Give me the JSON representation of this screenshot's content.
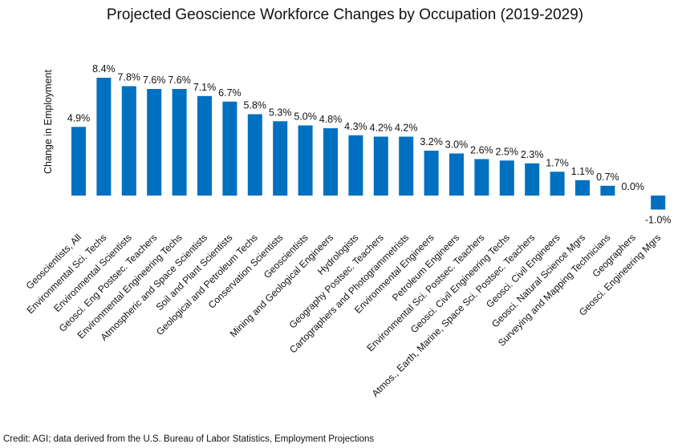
{
  "chart_data": {
    "type": "bar",
    "title": "Projected Geoscience Workforce Changes by Occupation (2019-2029)",
    "ylabel": "Change in Employment",
    "xlabel": "",
    "categories": [
      "Geoscientists, All",
      "Environmental Sci. Techs",
      "Environmental Scientists",
      "Geosci. Eng Postsec. Teachers",
      "Environmental Engineering Techs",
      "Atmospheric and Space Scientists",
      "Soil and Plant Scientists",
      "Geological and Petroleum Techs",
      "Conservation Scientists",
      "Geoscientists",
      "Mining and Geological Engineers",
      "Hydrologists",
      "Geography Postsec. Teachers",
      "Cartographers and Photogrammetrists",
      "Environmental Engineers",
      "Petroleum Engineers",
      "Environmental Sci. Postsec. Teachers",
      "Geosci. Civil Engineering Techs",
      "Atmos., Earth, Marine, Space Sci. Postsec. Teachers",
      "Geosci. Civil Engineers",
      "Geosci. Natural Science Mgrs",
      "Surveying and Mapping Technicians",
      "Geographers",
      "Geosci. Engineering Mgrs"
    ],
    "values": [
      4.9,
      8.4,
      7.8,
      7.6,
      7.6,
      7.1,
      6.7,
      5.8,
      5.3,
      5.0,
      4.8,
      4.3,
      4.2,
      4.2,
      3.2,
      3.0,
      2.6,
      2.5,
      2.3,
      1.7,
      1.1,
      0.7,
      0.0,
      -1.0
    ],
    "value_labels": [
      "4.9%",
      "8.4%",
      "7.8%",
      "7.6%",
      "7.6%",
      "7.1%",
      "6.7%",
      "5.8%",
      "5.3%",
      "5.0%",
      "4.8%",
      "4.3%",
      "4.2%",
      "4.2%",
      "3.2%",
      "3.0%",
      "2.6%",
      "2.5%",
      "2.3%",
      "1.7%",
      "1.1%",
      "0.7%",
      "0.0%",
      "-1.0%"
    ],
    "grid": false,
    "bar_color": "#0070C0"
  },
  "credit": "Credit: AGI; data derived from the U.S. Bureau of Labor Statistics, Employment Projections"
}
